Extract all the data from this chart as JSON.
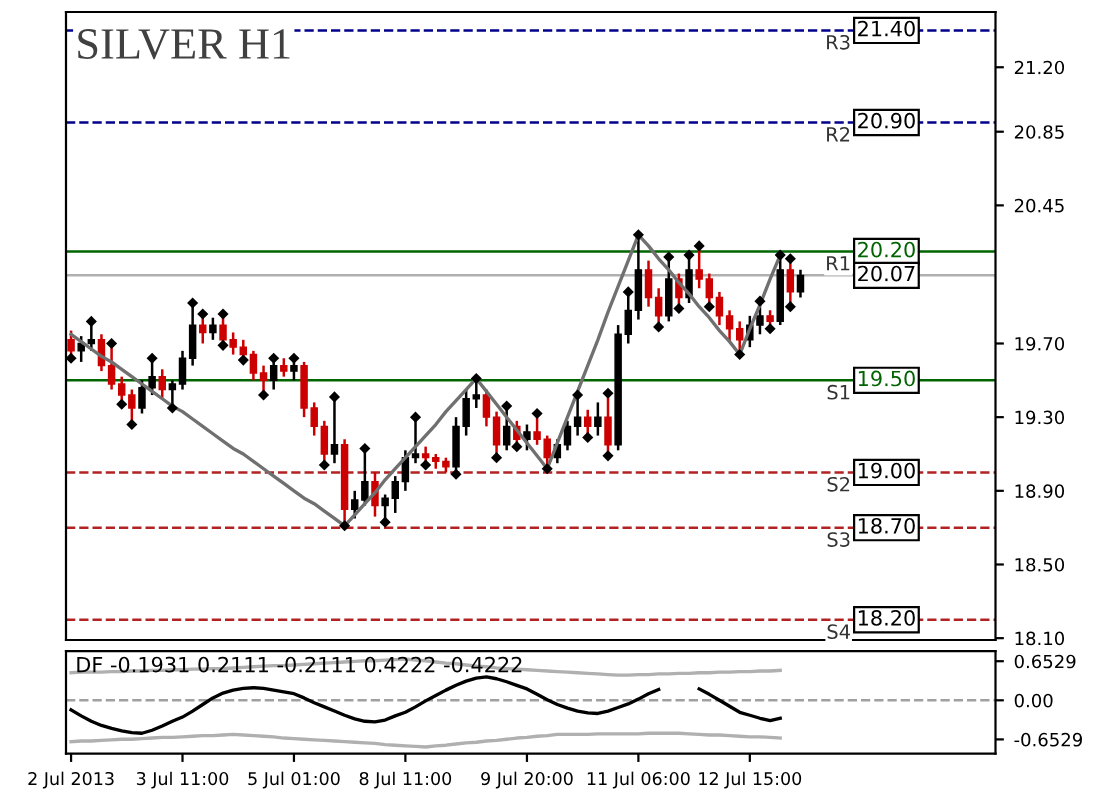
{
  "chart_data": [
    {
      "type": "candlestick",
      "title": "SILVER H1",
      "categories": [
        null,
        null,
        null,
        null,
        null,
        null,
        null,
        null,
        null,
        null,
        null,
        null,
        null,
        null,
        null,
        null,
        null,
        null,
        null,
        null,
        null,
        null,
        null,
        null,
        null,
        null,
        null,
        null,
        null,
        null,
        null,
        null,
        null,
        null,
        null,
        null,
        null,
        null,
        null,
        null,
        null,
        null,
        null,
        null,
        null,
        null,
        null,
        null,
        null,
        null,
        null,
        null,
        null,
        null,
        null,
        null,
        null,
        null,
        null,
        null,
        null,
        null,
        null,
        null,
        null,
        null,
        null,
        null,
        null,
        null,
        null,
        null,
        null
      ],
      "ohlc": [
        [
          19.72,
          19.77,
          19.62,
          19.66
        ],
        [
          19.66,
          19.74,
          19.6,
          19.7
        ],
        [
          19.7,
          19.82,
          19.66,
          19.72
        ],
        [
          19.72,
          19.75,
          19.55,
          19.58
        ],
        [
          19.58,
          19.7,
          19.45,
          19.48
        ],
        [
          19.48,
          19.52,
          19.37,
          19.42
        ],
        [
          19.42,
          19.45,
          19.26,
          19.35
        ],
        [
          19.35,
          19.5,
          19.32,
          19.46
        ],
        [
          19.46,
          19.62,
          19.42,
          19.52
        ],
        [
          19.52,
          19.56,
          19.4,
          19.45
        ],
        [
          19.45,
          19.5,
          19.35,
          19.48
        ],
        [
          19.48,
          19.66,
          19.45,
          19.62
        ],
        [
          19.62,
          19.92,
          19.58,
          19.8
        ],
        [
          19.8,
          19.86,
          19.7,
          19.76
        ],
        [
          19.76,
          19.84,
          19.72,
          19.8
        ],
        [
          19.8,
          19.86,
          19.69,
          19.72
        ],
        [
          19.72,
          19.76,
          19.64,
          19.68
        ],
        [
          19.68,
          19.72,
          19.61,
          19.64
        ],
        [
          19.64,
          19.66,
          19.5,
          19.54
        ],
        [
          19.54,
          19.58,
          19.42,
          19.5
        ],
        [
          19.5,
          19.62,
          19.45,
          19.58
        ],
        [
          19.58,
          19.62,
          19.52,
          19.55
        ],
        [
          19.55,
          19.62,
          19.5,
          19.58
        ],
        [
          19.58,
          19.6,
          19.3,
          19.35
        ],
        [
          19.35,
          19.38,
          19.2,
          19.25
        ],
        [
          19.25,
          19.28,
          19.04,
          19.1
        ],
        [
          19.1,
          19.41,
          19.05,
          19.15
        ],
        [
          19.15,
          19.18,
          18.71,
          18.8
        ],
        [
          18.8,
          18.9,
          18.75,
          18.85
        ],
        [
          18.85,
          19.13,
          18.82,
          18.95
        ],
        [
          18.95,
          19.0,
          18.76,
          18.82
        ],
        [
          18.82,
          18.88,
          18.73,
          18.86
        ],
        [
          18.86,
          18.98,
          18.78,
          18.95
        ],
        [
          18.95,
          19.12,
          18.9,
          19.08
        ],
        [
          19.08,
          19.3,
          19.05,
          19.1
        ],
        [
          19.1,
          19.14,
          19.04,
          19.08
        ],
        [
          19.08,
          19.1,
          19.02,
          19.06
        ],
        [
          19.06,
          19.08,
          19.0,
          19.03
        ],
        [
          19.03,
          19.3,
          18.99,
          19.25
        ],
        [
          19.25,
          19.45,
          19.2,
          19.4
        ],
        [
          19.4,
          19.51,
          19.35,
          19.42
        ],
        [
          19.42,
          19.45,
          19.25,
          19.3
        ],
        [
          19.3,
          19.33,
          19.08,
          19.15
        ],
        [
          19.15,
          19.36,
          19.12,
          19.25
        ],
        [
          19.25,
          19.28,
          19.14,
          19.18
        ],
        [
          19.18,
          19.26,
          19.12,
          19.22
        ],
        [
          19.22,
          19.32,
          19.15,
          19.18
        ],
        [
          19.18,
          19.2,
          19.02,
          19.08
        ],
        [
          19.08,
          19.18,
          19.05,
          19.15
        ],
        [
          19.15,
          19.28,
          19.12,
          19.25
        ],
        [
          19.25,
          19.42,
          19.2,
          19.3
        ],
        [
          19.3,
          19.34,
          19.19,
          19.25
        ],
        [
          19.25,
          19.38,
          19.2,
          19.3
        ],
        [
          19.3,
          19.43,
          19.09,
          19.15
        ],
        [
          19.15,
          19.8,
          19.12,
          19.75
        ],
        [
          19.75,
          19.98,
          19.7,
          19.88
        ],
        [
          19.88,
          20.29,
          19.83,
          20.1
        ],
        [
          20.1,
          20.15,
          19.9,
          19.95
        ],
        [
          19.95,
          20.0,
          19.79,
          19.85
        ],
        [
          19.85,
          20.17,
          19.82,
          20.05
        ],
        [
          20.05,
          20.08,
          19.89,
          19.95
        ],
        [
          19.95,
          20.18,
          19.92,
          20.1
        ],
        [
          20.1,
          20.23,
          20.0,
          20.05
        ],
        [
          20.05,
          20.08,
          19.9,
          19.95
        ],
        [
          19.95,
          19.98,
          19.8,
          19.85
        ],
        [
          19.85,
          19.88,
          19.71,
          19.78
        ],
        [
          19.78,
          19.82,
          19.64,
          19.72
        ],
        [
          19.72,
          19.85,
          19.68,
          19.8
        ],
        [
          19.8,
          19.93,
          19.75,
          19.85
        ],
        [
          19.85,
          19.88,
          19.78,
          19.82
        ],
        [
          19.82,
          20.18,
          19.8,
          20.1
        ],
        [
          20.1,
          20.16,
          19.9,
          19.98
        ],
        [
          19.98,
          20.1,
          19.95,
          20.07
        ]
      ],
      "series": [
        {
          "type": "line",
          "color": "#707070",
          "values": [
            19.75,
            19.71,
            19.67,
            19.63,
            19.6,
            19.56,
            19.52,
            19.48,
            19.44,
            19.4,
            19.36,
            19.33,
            19.29,
            19.25,
            19.21,
            19.17,
            19.13,
            19.1,
            19.06,
            19.02,
            18.98,
            18.94,
            18.9,
            18.86,
            18.83,
            18.79,
            18.75,
            18.71,
            18.77,
            18.83,
            18.89,
            18.96,
            19.02,
            19.08,
            19.14,
            19.2,
            19.26,
            19.33,
            19.39,
            19.45,
            19.51,
            19.44,
            19.37,
            19.3,
            19.23,
            19.16,
            19.09,
            19.02,
            19.16,
            19.3,
            19.44,
            19.58,
            19.72,
            19.87,
            20.01,
            20.15,
            20.29,
            20.23,
            20.16,
            20.1,
            20.03,
            19.97,
            19.9,
            19.84,
            19.77,
            19.71,
            19.64,
            19.78,
            19.91,
            20.05,
            20.18,
            null,
            null
          ]
        },
        {
          "type": "scatter",
          "color": "#000000",
          "marker": "diamond",
          "values": [
            null,
            null,
            19.82,
            null,
            19.7,
            null,
            null,
            null,
            19.62,
            null,
            null,
            null,
            19.92,
            19.86,
            null,
            19.86,
            null,
            null,
            null,
            null,
            19.62,
            null,
            19.62,
            null,
            null,
            null,
            19.41,
            null,
            null,
            19.13,
            null,
            null,
            null,
            null,
            19.3,
            null,
            null,
            null,
            null,
            null,
            19.51,
            null,
            null,
            19.36,
            null,
            null,
            19.32,
            null,
            null,
            null,
            19.42,
            null,
            null,
            19.43,
            null,
            19.98,
            20.29,
            null,
            null,
            20.17,
            null,
            20.18,
            20.23,
            null,
            null,
            null,
            null,
            null,
            19.93,
            null,
            20.18,
            20.16,
            null
          ]
        },
        {
          "type": "scatter",
          "color": "#000000",
          "marker": "diamond",
          "values": [
            19.62,
            null,
            null,
            null,
            null,
            19.37,
            19.26,
            null,
            null,
            null,
            19.35,
            null,
            null,
            null,
            null,
            19.69,
            null,
            19.61,
            null,
            19.42,
            null,
            null,
            null,
            null,
            null,
            19.04,
            null,
            18.71,
            null,
            null,
            null,
            18.73,
            null,
            null,
            null,
            19.04,
            null,
            null,
            18.99,
            null,
            null,
            null,
            19.08,
            null,
            19.14,
            null,
            null,
            19.02,
            null,
            null,
            null,
            19.19,
            null,
            19.09,
            null,
            null,
            null,
            null,
            19.79,
            null,
            19.89,
            null,
            null,
            19.9,
            null,
            null,
            19.64,
            null,
            null,
            19.78,
            null,
            19.9,
            null
          ]
        }
      ],
      "ref_lines": [
        {
          "axis": "y",
          "value": 21.4,
          "label": "21.40",
          "color": "#00008b",
          "line_style": "dashed"
        },
        {
          "axis": "y",
          "value": 20.9,
          "label": "20.90",
          "color": "#00008b",
          "line_style": "dashed"
        },
        {
          "axis": "y",
          "value": 20.2,
          "label": "20.20",
          "color": "#006400",
          "line_style": "solid"
        },
        {
          "axis": "y",
          "value": 20.07,
          "label": "20.07",
          "color": "#b0b0b0",
          "line_style": "solid"
        },
        {
          "axis": "y",
          "value": 19.5,
          "label": "19.50",
          "color": "#006400",
          "line_style": "solid"
        },
        {
          "axis": "y",
          "value": 19.0,
          "label": "19.00",
          "color": "#b22222",
          "line_style": "dashed"
        },
        {
          "axis": "y",
          "value": 18.7,
          "label": "18.70",
          "color": "#b22222",
          "line_style": "dashed"
        },
        {
          "axis": "y",
          "value": 18.2,
          "label": "18.20",
          "color": "#b22222",
          "line_style": "dashed"
        }
      ],
      "annotations": [
        {
          "text": "R3",
          "y": 21.4
        },
        {
          "text": "R2",
          "y": 20.9
        },
        {
          "text": "R1",
          "y": 20.2
        },
        {
          "text": "S1",
          "y": 19.5
        },
        {
          "text": "S2",
          "y": 19.0
        },
        {
          "text": "S3",
          "y": 18.7
        },
        {
          "text": "S4",
          "y": 18.2
        }
      ],
      "ylim": [
        18.09,
        21.5
      ],
      "yticks": [
        {
          "value": 18.1,
          "label": "18.10"
        },
        {
          "value": 18.5,
          "label": "18.50"
        },
        {
          "value": 18.9,
          "label": "18.90"
        },
        {
          "value": 19.3,
          "label": "19.30"
        },
        {
          "value": 19.7,
          "label": "19.70"
        },
        {
          "value": 20.45,
          "label": "20.45"
        },
        {
          "value": 20.85,
          "label": "20.85"
        },
        {
          "value": 21.2,
          "label": "21.20"
        }
      ],
      "tick_labels": "y"
    },
    {
      "type": "line",
      "title": "DF -0.1931 0.2111 -0.2111 0.4222 -0.4222",
      "categories": [
        "2 Jul 2013",
        null,
        null,
        null,
        null,
        null,
        null,
        null,
        null,
        null,
        null,
        "3 Jul 11:00",
        null,
        null,
        null,
        null,
        null,
        null,
        null,
        null,
        null,
        null,
        "5 Jul 01:00",
        null,
        null,
        null,
        null,
        null,
        null,
        null,
        null,
        null,
        null,
        "8 Jul 11:00",
        null,
        null,
        null,
        null,
        null,
        null,
        null,
        null,
        null,
        null,
        null,
        "9 Jul 20:00",
        null,
        null,
        null,
        null,
        null,
        null,
        null,
        null,
        null,
        null,
        "11 Jul 06:00",
        null,
        null,
        null,
        null,
        null,
        null,
        null,
        null,
        null,
        null,
        "12 Jul 15:00",
        null,
        null,
        null,
        null,
        null
      ],
      "series": [
        {
          "color": "#000000",
          "values": [
            -0.16,
            -0.26,
            -0.35,
            -0.42,
            -0.47,
            -0.51,
            -0.54,
            -0.55,
            -0.5,
            -0.43,
            -0.35,
            -0.28,
            -0.18,
            -0.07,
            0.04,
            0.12,
            0.17,
            0.2,
            0.21,
            0.2,
            0.17,
            0.14,
            0.11,
            0.04,
            -0.04,
            -0.11,
            -0.18,
            -0.25,
            -0.31,
            -0.35,
            -0.36,
            -0.33,
            -0.26,
            -0.2,
            -0.11,
            -0.01,
            0.08,
            0.17,
            0.25,
            0.32,
            0.37,
            0.39,
            0.36,
            0.31,
            0.25,
            0.19,
            0.1,
            0.01,
            -0.07,
            -0.13,
            -0.18,
            -0.21,
            -0.22,
            -0.18,
            -0.12,
            -0.06,
            0.02,
            0.11,
            0.18,
            null,
            null,
            null,
            0.19,
            0.1,
            0.0,
            -0.1,
            -0.2,
            -0.25,
            -0.3,
            -0.34,
            -0.3,
            null,
            null
          ]
        },
        {
          "color": "#b0b0b0",
          "values": [
            0.46,
            0.47,
            0.47,
            0.47,
            0.48,
            0.48,
            0.49,
            0.49,
            0.5,
            0.5,
            0.51,
            0.51,
            0.52,
            0.52,
            0.53,
            0.53,
            0.54,
            0.55,
            0.56,
            0.57,
            0.58,
            0.58,
            0.59,
            0.6,
            0.61,
            0.62,
            0.63,
            0.64,
            0.65,
            0.66,
            0.66,
            0.67,
            0.68,
            0.69,
            0.67,
            0.66,
            0.64,
            0.62,
            0.61,
            0.59,
            0.57,
            0.56,
            0.54,
            0.53,
            0.52,
            0.51,
            0.5,
            0.49,
            0.48,
            0.47,
            0.46,
            0.45,
            0.44,
            0.43,
            0.42,
            0.42,
            0.43,
            0.43,
            0.44,
            0.44,
            0.45,
            0.45,
            0.46,
            0.46,
            0.47,
            0.47,
            0.48,
            0.48,
            0.49,
            0.49,
            0.5,
            null,
            null
          ]
        },
        {
          "color": "#b0b0b0",
          "values": [
            -0.69,
            -0.68,
            -0.68,
            -0.67,
            -0.66,
            -0.65,
            -0.65,
            -0.64,
            -0.63,
            -0.62,
            -0.62,
            -0.61,
            -0.6,
            -0.59,
            -0.59,
            -0.58,
            -0.57,
            -0.58,
            -0.59,
            -0.6,
            -0.61,
            -0.63,
            -0.64,
            -0.65,
            -0.66,
            -0.67,
            -0.68,
            -0.69,
            -0.7,
            -0.71,
            -0.72,
            -0.74,
            -0.75,
            -0.76,
            -0.77,
            -0.78,
            -0.76,
            -0.75,
            -0.73,
            -0.71,
            -0.7,
            -0.68,
            -0.67,
            -0.65,
            -0.63,
            -0.62,
            -0.6,
            -0.59,
            -0.57,
            -0.57,
            -0.57,
            -0.57,
            -0.56,
            -0.56,
            -0.56,
            -0.56,
            -0.56,
            -0.55,
            -0.55,
            -0.55,
            -0.55,
            -0.56,
            -0.57,
            -0.58,
            -0.58,
            -0.59,
            -0.6,
            -0.61,
            -0.61,
            -0.62,
            -0.63,
            null,
            null
          ]
        }
      ],
      "ref_lines": [
        {
          "axis": "y",
          "value": 0,
          "color": "#a0a0a0",
          "line_style": "dashed"
        }
      ],
      "ylim": [
        -0.89,
        0.82
      ],
      "yticks": [
        {
          "value": -0.6529,
          "label": "-0.6529"
        },
        {
          "value": 0,
          "label": "0.00"
        },
        {
          "value": 0.6529,
          "label": "0.6529"
        }
      ]
    }
  ]
}
